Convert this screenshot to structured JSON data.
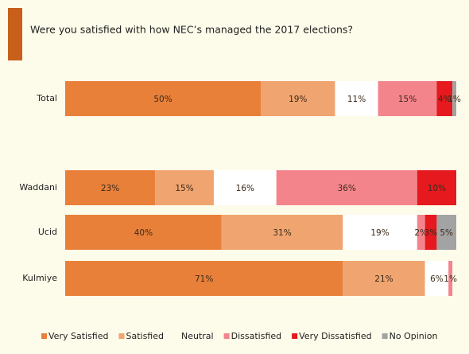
{
  "chart_data": {
    "type": "bar",
    "orientation": "horizontal",
    "stacked": true,
    "title": "Were you satisfied with how NEC’s managed the 2017 elections?",
    "categories": [
      "Total",
      "Waddani",
      "Ucid",
      "Kulmiye"
    ],
    "xlim": [
      0,
      100
    ],
    "legend": "bottom",
    "series": [
      {
        "name": "Very Satisfied",
        "color": "#e8803a",
        "values": [
          50,
          23,
          40,
          71
        ],
        "value_labels": [
          "50%",
          "23%",
          "40%",
          "71%"
        ]
      },
      {
        "name": "Satisfied",
        "color": "#f0a470",
        "values": [
          19,
          15,
          31,
          21
        ],
        "value_labels": [
          "19%",
          "15%",
          "31%",
          "21%"
        ]
      },
      {
        "name": "Neutral",
        "color": "#ffffff",
        "values": [
          11,
          16,
          19,
          6
        ],
        "value_labels": [
          "11%",
          "16%",
          "19%",
          "6%"
        ]
      },
      {
        "name": "Dissatisfied",
        "color": "#f4848c",
        "values": [
          15,
          36,
          2,
          1
        ],
        "value_labels": [
          "15%",
          "36%",
          "2%",
          "1%"
        ]
      },
      {
        "name": "Very Dissatisfied",
        "color": "#e6191e",
        "values": [
          4,
          10,
          3,
          null
        ],
        "value_labels": [
          "4%",
          "10%",
          "3%",
          null
        ]
      },
      {
        "name": "No Opinion",
        "color": "#a3a3a3",
        "values": [
          1,
          null,
          5,
          null
        ],
        "value_labels": [
          "1%",
          null,
          "5%",
          null
        ]
      }
    ]
  }
}
